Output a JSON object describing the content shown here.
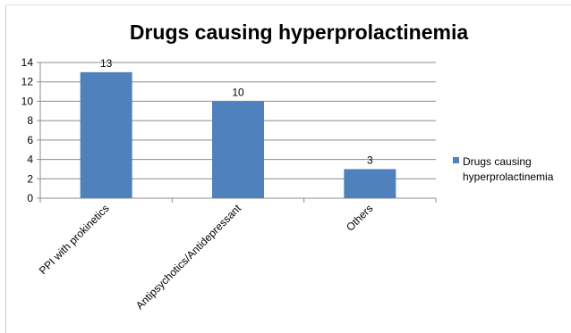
{
  "chart_data": {
    "type": "bar",
    "title": "Drugs causing hyperprolactinemia",
    "xlabel": "",
    "ylabel": "",
    "categories": [
      "PPI with prokinetics",
      "Antipsychotics/Antidepressant",
      "Others"
    ],
    "series": [
      {
        "name": "Drugs causing hyperprolactinemia",
        "values": [
          13,
          10,
          3
        ],
        "color": "#4f81bd"
      }
    ],
    "data_labels": [
      "13",
      "10",
      "3"
    ],
    "ylim": [
      0,
      14
    ],
    "yticks": [
      0,
      2,
      4,
      6,
      8,
      10,
      12,
      14
    ],
    "grid": true,
    "legend_position": "right",
    "legend_lines": [
      "Drugs causing",
      "hyperprolactinemia"
    ]
  }
}
